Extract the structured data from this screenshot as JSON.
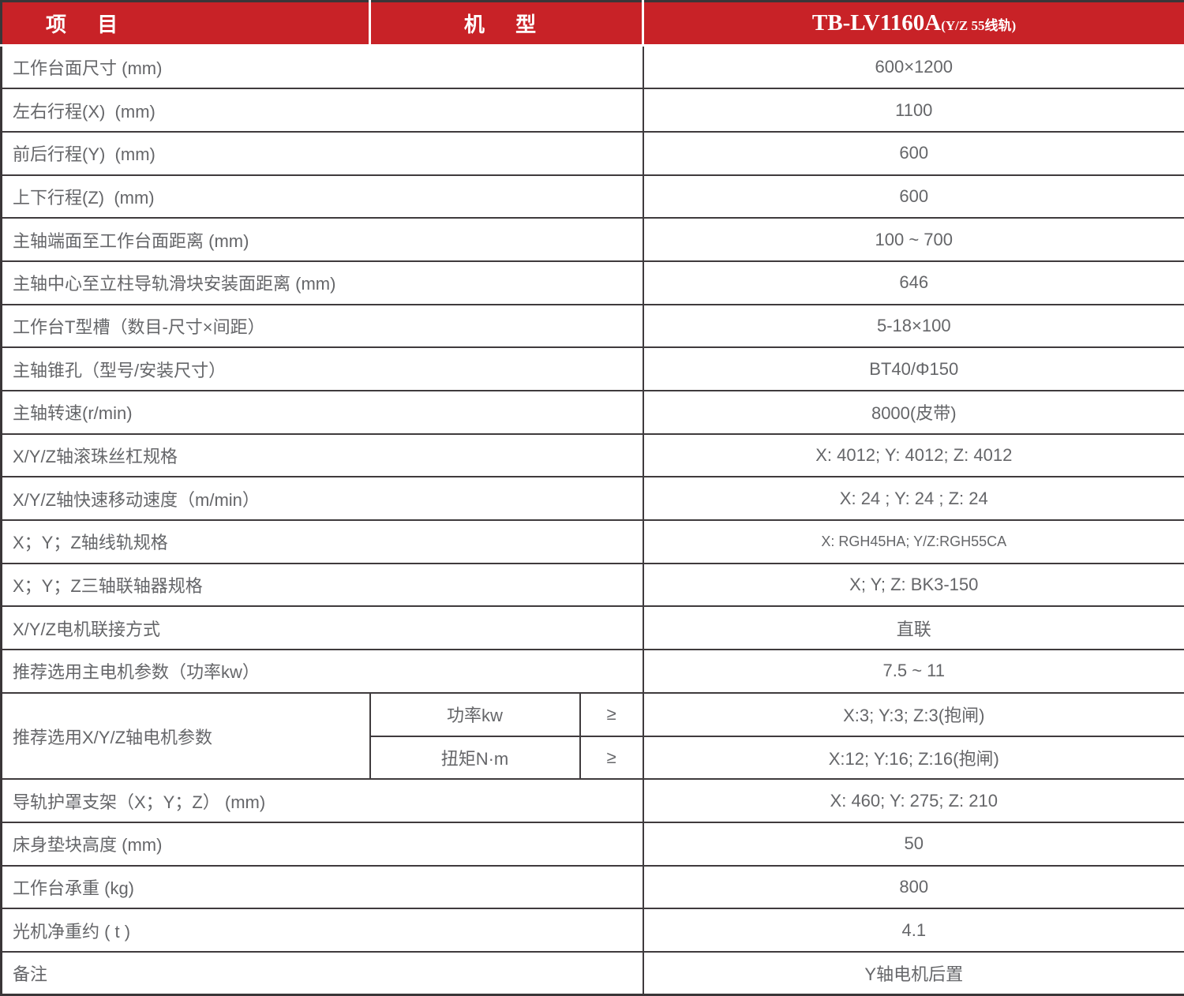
{
  "header": {
    "items_label": "项 目",
    "model_col_label": "机 型",
    "model_name": "TB-LV1160A",
    "model_note": "(Y/Z 55线轨)"
  },
  "rows_top": [
    {
      "label": "工作台面尺寸 (mm)",
      "value": "600×1200"
    },
    {
      "label": "左右行程(X)  (mm)",
      "value": "1100"
    },
    {
      "label": "前后行程(Y)  (mm)",
      "value": "600"
    },
    {
      "label": "上下行程(Z)  (mm)",
      "value": "600"
    },
    {
      "label": "主轴端面至工作台面距离 (mm)",
      "value": "100 ~ 700"
    },
    {
      "label": "主轴中心至立柱导轨滑块安装面距离 (mm)",
      "value": "646"
    },
    {
      "label": "工作台T型槽（数目-尺寸×间距）",
      "value": "5-18×100"
    },
    {
      "label": "主轴锥孔（型号/安装尺寸）",
      "value": "BT40/Φ150"
    },
    {
      "label": "主轴转速(r/min)",
      "value": "8000(皮带)"
    },
    {
      "label": "X/Y/Z轴滚珠丝杠规格",
      "value": "X: 4012; Y: 4012; Z: 4012"
    },
    {
      "label": "X/Y/Z轴快速移动速度（m/min）",
      "value": "X: 24 ; Y: 24 ; Z: 24"
    },
    {
      "label": "X；Y；Z轴线轨规格",
      "value": "X: RGH45HA; Y/Z:RGH55CA"
    },
    {
      "label": "X；Y；Z三轴联轴器规格",
      "value": "X; Y; Z: BK3-150"
    },
    {
      "label": "X/Y/Z电机联接方式",
      "value": "直联"
    },
    {
      "label": "推荐选用主电机参数（功率kw）",
      "value": "7.5 ~ 11"
    }
  ],
  "motor_params": {
    "label": "推荐选用X/Y/Z轴电机参数",
    "rows": [
      {
        "param": "功率kw",
        "op": "≥",
        "value": "X:3; Y:3; Z:3(抱闸)"
      },
      {
        "param": "扭矩N·m",
        "op": "≥",
        "value": "X:12; Y:16; Z:16(抱闸)"
      }
    ]
  },
  "rows_bottom": [
    {
      "label": "导轨护罩支架（X；Y；Z） (mm)",
      "value": "X: 460; Y: 275; Z: 210"
    },
    {
      "label": "床身垫块高度 (mm)",
      "value": "50"
    },
    {
      "label": "工作台承重 (kg)",
      "value": "800"
    },
    {
      "label": "光机净重约 ( t )",
      "value": "4.1"
    },
    {
      "label": "备注",
      "value": "Y轴电机后置"
    }
  ],
  "colors": {
    "header_red": "#c82227",
    "border": "#3f3b3d",
    "text": "#656669",
    "header_text": "#ffffff"
  }
}
